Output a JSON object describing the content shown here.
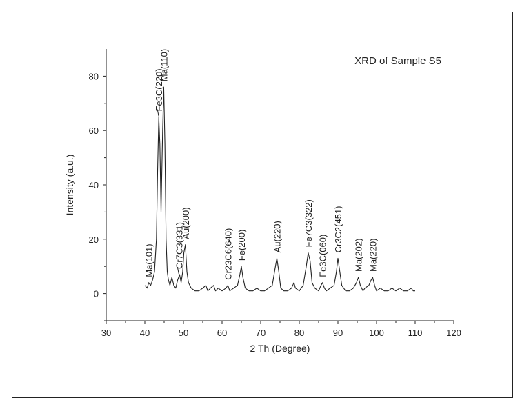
{
  "chart_data": {
    "type": "line",
    "title": "XRD of Sample S5",
    "xlabel": "2 Th (Degree)",
    "ylabel": "Intensity (a.u.)",
    "xlim": [
      30,
      120
    ],
    "ylim": [
      -10,
      90
    ],
    "xticks": [
      30,
      40,
      50,
      60,
      70,
      80,
      90,
      100,
      110,
      120
    ],
    "yticks": [
      0,
      20,
      40,
      60,
      80
    ],
    "grid": false,
    "series": [
      {
        "x": [
          40.0,
          40.6,
          41.0,
          41.5,
          42.0,
          42.5,
          43.0,
          43.3,
          43.6,
          43.9,
          44.2,
          44.6,
          44.9,
          45.2,
          45.5,
          45.8,
          46.1,
          46.5,
          47.0,
          47.5,
          48.0,
          48.5,
          49.0,
          49.4,
          49.8,
          50.1,
          50.5,
          50.9,
          51.3,
          52.0,
          53.0,
          54.0,
          55.0,
          55.8,
          56.3,
          57.0,
          57.8,
          58.3,
          59.0,
          60.0,
          61.0,
          61.5,
          62.0,
          63.0,
          64.0,
          64.6,
          65.0,
          65.4,
          66.0,
          67.0,
          68.0,
          69.0,
          70.0,
          71.0,
          72.0,
          73.0,
          73.7,
          74.2,
          74.7,
          75.2,
          76.0,
          77.0,
          78.0,
          78.6,
          79.0,
          80.0,
          81.0,
          81.8,
          82.3,
          82.8,
          83.3,
          84.0,
          85.0,
          85.6,
          86.0,
          86.5,
          87.0,
          88.0,
          89.0,
          89.6,
          90.0,
          90.4,
          91.0,
          92.0,
          93.0,
          94.0,
          94.8,
          95.3,
          95.8,
          96.5,
          97.0,
          98.0,
          98.6,
          99.0,
          99.5,
          100.0,
          101.0,
          102.0,
          103.0,
          104.0,
          105.0,
          106.0,
          107.0,
          108.0,
          109.0,
          109.5,
          110.0
        ],
        "y": [
          3,
          2,
          4,
          3,
          5,
          8,
          20,
          45,
          65,
          55,
          30,
          60,
          76,
          55,
          20,
          8,
          5,
          3,
          6,
          3,
          2,
          5,
          7,
          4,
          8,
          15,
          18,
          8,
          4,
          2,
          1,
          1,
          2,
          3,
          1,
          2,
          3,
          1,
          2,
          1,
          2,
          3,
          1,
          2,
          3,
          7,
          10,
          6,
          2,
          1,
          1,
          2,
          1,
          1,
          2,
          3,
          9,
          13,
          8,
          2,
          1,
          1,
          2,
          4,
          2,
          1,
          3,
          10,
          15,
          12,
          4,
          2,
          1,
          3,
          4,
          2,
          1,
          2,
          3,
          8,
          13,
          9,
          3,
          1,
          1,
          2,
          4,
          6,
          3,
          1,
          2,
          3,
          5,
          6,
          3,
          1,
          2,
          1,
          1,
          2,
          1,
          2,
          1,
          1,
          2,
          1,
          1
        ]
      }
    ],
    "annotations": [
      {
        "text": "Ma(101)",
        "x": 41.0,
        "y": 4,
        "rotate": true
      },
      {
        "text": "Fe3C(220)",
        "x": 43.6,
        "y": 65,
        "rotate": true,
        "arrow": true
      },
      {
        "text": "Ma(110)",
        "x": 44.9,
        "y": 76,
        "rotate": true
      },
      {
        "text": "Cr7C3(331)",
        "x": 48.8,
        "y": 7,
        "rotate": true,
        "arrow": true
      },
      {
        "text": "Au(200)",
        "x": 50.5,
        "y": 18,
        "rotate": true
      },
      {
        "text": "Cr23C6(640)",
        "x": 61.5,
        "y": 3,
        "rotate": true
      },
      {
        "text": "Fe(200)",
        "x": 65.0,
        "y": 10,
        "rotate": true
      },
      {
        "text": "Au(220)",
        "x": 74.2,
        "y": 13,
        "rotate": true
      },
      {
        "text": "Fe7C3(322)",
        "x": 82.3,
        "y": 15,
        "rotate": true
      },
      {
        "text": "Fe3C(060)",
        "x": 86.0,
        "y": 4,
        "rotate": true
      },
      {
        "text": "Cr3C2(451)",
        "x": 90.0,
        "y": 13,
        "rotate": true
      },
      {
        "text": "Ma(202)",
        "x": 95.3,
        "y": 6,
        "rotate": true
      },
      {
        "text": "Ma(220)",
        "x": 99.0,
        "y": 6,
        "rotate": true
      }
    ],
    "colors": {
      "line": "#222222",
      "axis": "#222222"
    }
  }
}
